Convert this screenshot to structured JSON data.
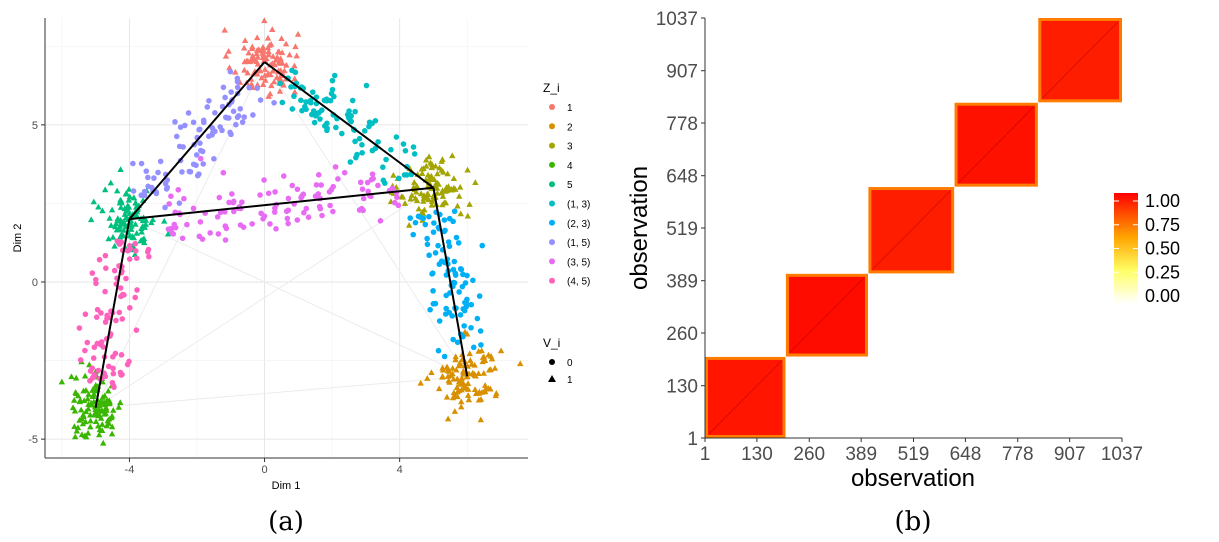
{
  "chart_data": [
    {
      "type": "scatter",
      "caption": "(a)",
      "xlabel": "Dim 1",
      "ylabel": "Dim 2",
      "xlim": [
        -6.5,
        7.8
      ],
      "ylim": [
        -5.6,
        8.4
      ],
      "x_ticks": [
        -4,
        0,
        4
      ],
      "y_ticks": [
        -5,
        0,
        5
      ],
      "x_tick_labels": [
        "-4",
        "0",
        "4"
      ],
      "y_tick_labels": [
        "-5",
        "0",
        "5"
      ],
      "grid": true,
      "legend_position": "right",
      "color_legend": {
        "title": "Z_i",
        "entries": [
          {
            "label": "1",
            "color": "#F8766D"
          },
          {
            "label": "2",
            "color": "#D89000"
          },
          {
            "label": "3",
            "color": "#A3A500"
          },
          {
            "label": "4",
            "color": "#39B600"
          },
          {
            "label": "5",
            "color": "#00BF7D"
          },
          {
            "label": "(1, 3)",
            "color": "#00BFC4"
          },
          {
            "label": "(2, 3)",
            "color": "#00B0F6"
          },
          {
            "label": "(1, 5)",
            "color": "#9590FF"
          },
          {
            "label": "(3, 5)",
            "color": "#E76BF3"
          },
          {
            "label": "(4, 5)",
            "color": "#FF62BC"
          }
        ]
      },
      "shape_legend": {
        "title": "V_i",
        "entries": [
          {
            "label": "0",
            "shape": "circle"
          },
          {
            "label": "1",
            "shape": "triangle"
          }
        ]
      },
      "vertices": [
        {
          "name": "1",
          "x": 0,
          "y": 7
        },
        {
          "name": "2",
          "x": 6,
          "y": -3
        },
        {
          "name": "3",
          "x": 5,
          "y": 3
        },
        {
          "name": "4",
          "x": -5,
          "y": -4
        },
        {
          "name": "5",
          "x": -4,
          "y": 2
        }
      ],
      "path_edges": [
        [
          "4",
          "5"
        ],
        [
          "5",
          "1"
        ],
        [
          "1",
          "3"
        ],
        [
          "3",
          "2"
        ],
        [
          "5",
          "3"
        ]
      ],
      "faint_edges": [
        [
          "1",
          "2"
        ],
        [
          "1",
          "4"
        ],
        [
          "2",
          "4"
        ],
        [
          "2",
          "5"
        ],
        [
          "3",
          "4"
        ]
      ],
      "clusters": [
        {
          "group": "1",
          "center": [
            0,
            7
          ],
          "spread": [
            0.75,
            0.55
          ],
          "n": 110,
          "shape": "triangle"
        },
        {
          "group": "2",
          "center": [
            6,
            -3
          ],
          "spread": [
            0.75,
            0.55
          ],
          "n": 110,
          "shape": "triangle"
        },
        {
          "group": "3",
          "center": [
            5,
            3
          ],
          "spread": [
            0.75,
            0.55
          ],
          "n": 110,
          "shape": "triangle"
        },
        {
          "group": "4",
          "center": [
            -5,
            -4
          ],
          "spread": [
            0.6,
            0.55
          ],
          "n": 110,
          "shape": "triangle"
        },
        {
          "group": "5",
          "center": [
            -4,
            2
          ],
          "spread": [
            0.6,
            0.55
          ],
          "n": 110,
          "shape": "triangle"
        },
        {
          "group": "(1, 3)",
          "from": [
            0,
            7
          ],
          "to": [
            5,
            3
          ],
          "n": 90,
          "shape": "circle"
        },
        {
          "group": "(2, 3)",
          "from": [
            5,
            3
          ],
          "to": [
            6,
            -3
          ],
          "n": 90,
          "shape": "circle"
        },
        {
          "group": "(1, 5)",
          "from": [
            0,
            7
          ],
          "to": [
            -4,
            2
          ],
          "n": 90,
          "shape": "circle"
        },
        {
          "group": "(3, 5)",
          "from": [
            -4,
            2
          ],
          "to": [
            5,
            3
          ],
          "n": 110,
          "shape": "circle"
        },
        {
          "group": "(4, 5)",
          "from": [
            -4,
            2
          ],
          "to": [
            -5,
            -4
          ],
          "n": 90,
          "shape": "circle"
        }
      ]
    },
    {
      "type": "heatmap",
      "caption": "(b)",
      "xlabel": "observation",
      "ylabel": "observation",
      "x_tick_labels": [
        "1",
        "130",
        "260",
        "389",
        "519",
        "648",
        "778",
        "907",
        "1037"
      ],
      "y_tick_labels": [
        "1",
        "130",
        "260",
        "389",
        "519",
        "648",
        "778",
        "907",
        "1037"
      ],
      "n_observations": 1037,
      "blocks": [
        {
          "start": 1,
          "end": 201,
          "value": 0.95
        },
        {
          "start": 202,
          "end": 406,
          "value": 0.97
        },
        {
          "start": 407,
          "end": 620,
          "value": 0.93
        },
        {
          "start": 621,
          "end": 828,
          "value": 0.96
        },
        {
          "start": 829,
          "end": 1037,
          "value": 0.93
        }
      ],
      "off_block_value": 0.0,
      "colorbar": {
        "colors": [
          "#FFFFFF",
          "#FFFF00",
          "#FFA500",
          "#FF0000"
        ],
        "ticks": [
          "1.00",
          "0.75",
          "0.50",
          "0.25",
          "0.00"
        ]
      }
    }
  ]
}
